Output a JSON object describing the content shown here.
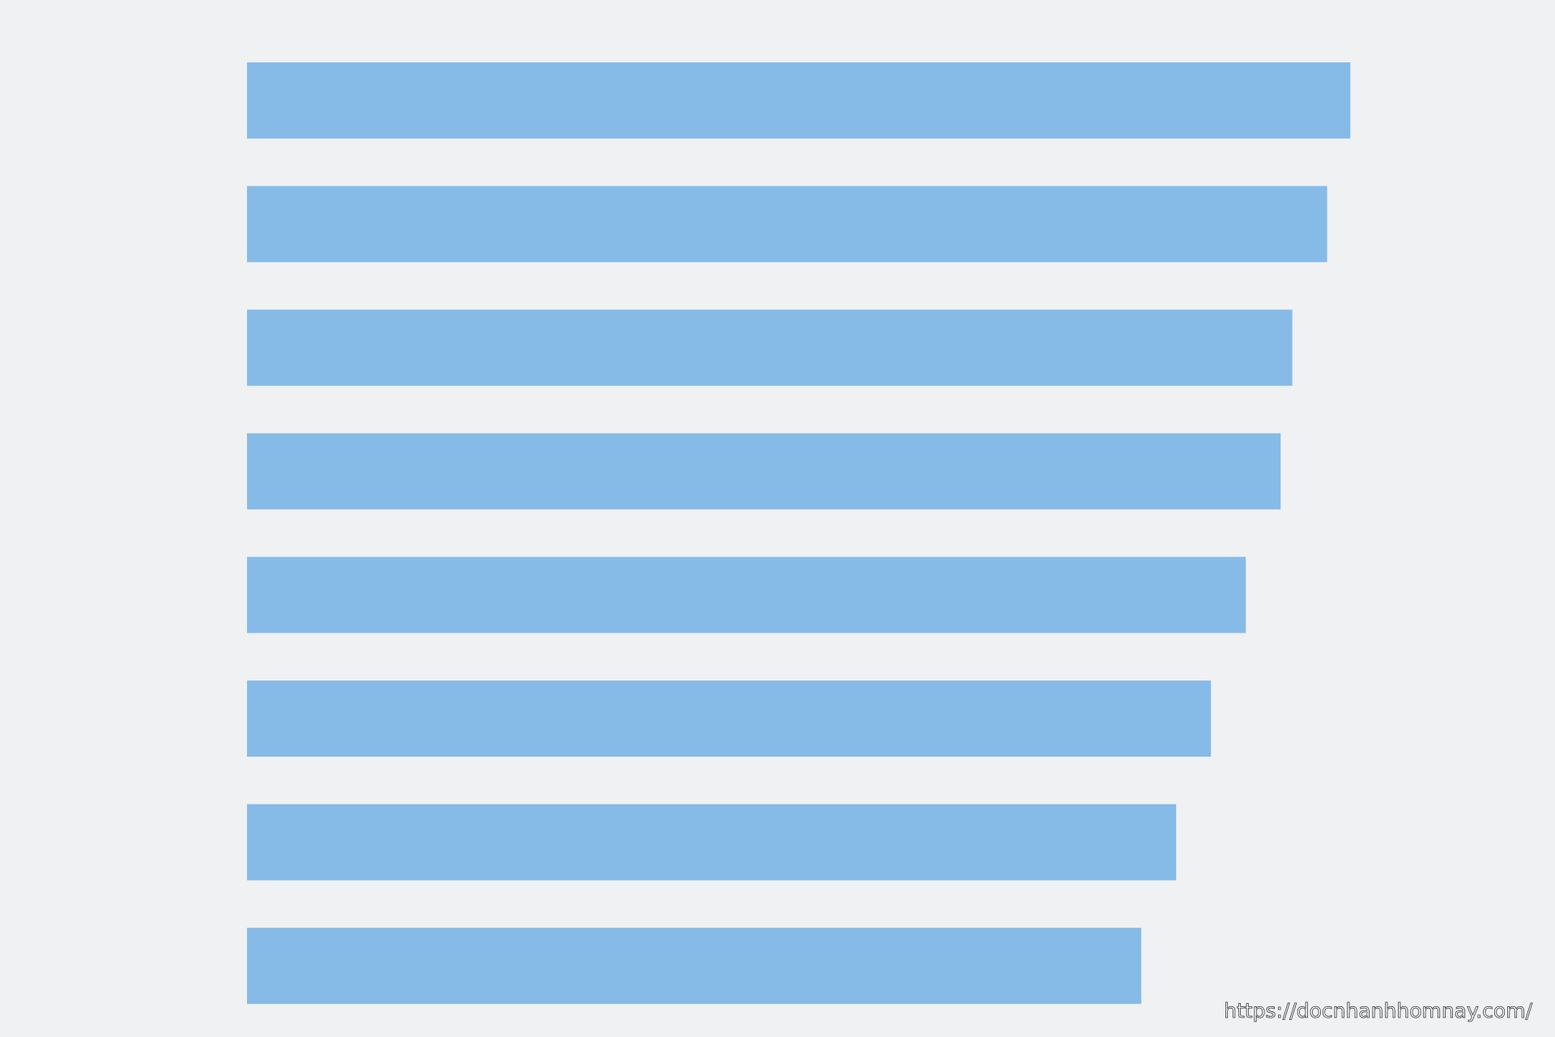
{
  "chart_data": {
    "type": "bar",
    "orientation": "horizontal",
    "categories": [
      null,
      null,
      null,
      null,
      null,
      null,
      null,
      null
    ],
    "values": [
      95,
      93,
      90,
      89,
      86,
      83,
      80,
      77
    ],
    "color": "#86bbe8",
    "xlim": [
      0,
      100
    ]
  },
  "watermark": "https://docnhanhhomnay.com/"
}
